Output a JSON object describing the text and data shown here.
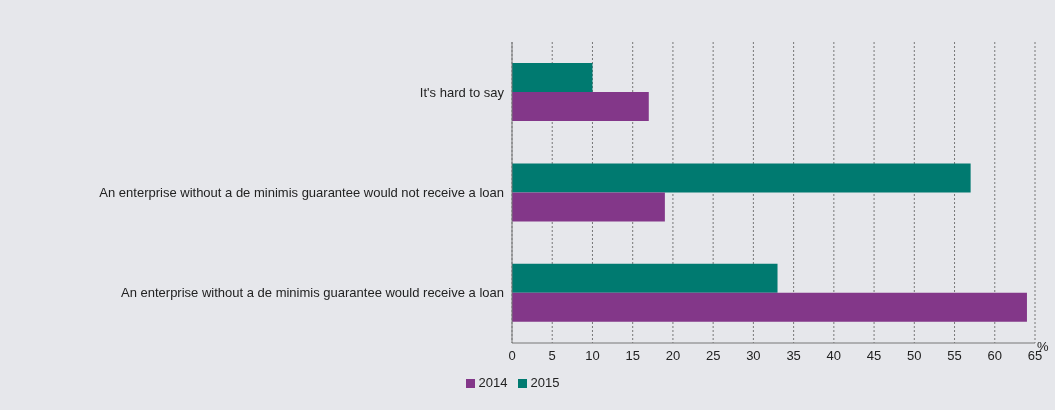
{
  "chart_data": {
    "type": "bar",
    "orientation": "horizontal",
    "categories": [
      "It's hard to say",
      "An enterprise without a de minimis guarantee would not receive a loan",
      "An enterprise without a de minimis guarantee would receive a loan"
    ],
    "series": [
      {
        "name": "2015",
        "color": "#007a70",
        "values": [
          10,
          57,
          33
        ]
      },
      {
        "name": "2014",
        "color": "#833789",
        "values": [
          17,
          19,
          64
        ]
      }
    ],
    "xlabel": "%",
    "xlim": [
      0,
      65
    ],
    "xticks": [
      0,
      5,
      10,
      15,
      20,
      25,
      30,
      35,
      40,
      45,
      50,
      55,
      60,
      65
    ],
    "grid": "x",
    "legend": "bottom"
  }
}
